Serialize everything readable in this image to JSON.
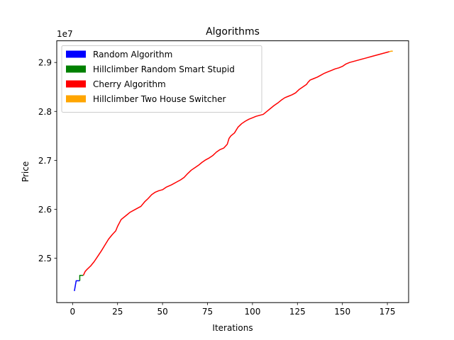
{
  "chart_data": {
    "type": "line",
    "title": "Algorithms",
    "xlabel": "Iterations",
    "ylabel": "Price",
    "y_offset_text": "1e7",
    "xlim": [
      -8.8,
      186.8
    ],
    "ylim": [
      24093000.0,
      29443000.0
    ],
    "xticks": [
      0,
      25,
      50,
      75,
      100,
      125,
      150,
      175
    ],
    "xtick_labels": [
      "0",
      "25",
      "50",
      "75",
      "100",
      "125",
      "150",
      "175"
    ],
    "yticks": [
      25000000.0,
      26000000.0,
      27000000.0,
      28000000.0,
      29000000.0
    ],
    "ytick_labels": [
      "2.5",
      "2.6",
      "2.7",
      "2.8",
      "2.9"
    ],
    "grid": false,
    "legend_position": "top-left",
    "series": [
      {
        "name": "Random Algorithm",
        "color": "#0000ff",
        "x": [
          1,
          2,
          3,
          4
        ],
        "y": [
          24330000,
          24540000,
          24540000,
          24540000
        ]
      },
      {
        "name": "Hillclimber Random Smart Stupid",
        "color": "#008000",
        "x": [
          4,
          4,
          5,
          6
        ],
        "y": [
          24540000,
          24650000,
          24650000,
          24650000
        ]
      },
      {
        "name": "Cherry Algorithm",
        "color": "#ff0000",
        "x": [
          6,
          7,
          8,
          10,
          12,
          14,
          16,
          18,
          20,
          22,
          24,
          25,
          27,
          30,
          32,
          35,
          38,
          40,
          42,
          44,
          46,
          48,
          50,
          52,
          55,
          58,
          60,
          62,
          64,
          66,
          68,
          70,
          72,
          74,
          76,
          78,
          80,
          82,
          84,
          86,
          87,
          88,
          90,
          91,
          92,
          94,
          96,
          98,
          100,
          102,
          104,
          106,
          108,
          110,
          112,
          114,
          116,
          118,
          120,
          122,
          124,
          126,
          128,
          130,
          131,
          132,
          134,
          136,
          138,
          140,
          142,
          144,
          146,
          148,
          150,
          152,
          154,
          156,
          158,
          160,
          162,
          164,
          166,
          168,
          170,
          172,
          174,
          176
        ],
        "y": [
          24650000,
          24730000,
          24770000,
          24840000,
          24930000,
          25040000,
          25150000,
          25270000,
          25390000,
          25480000,
          25560000,
          25650000,
          25790000,
          25880000,
          25940000,
          26000000,
          26060000,
          26150000,
          26220000,
          26300000,
          26350000,
          26380000,
          26400000,
          26450000,
          26500000,
          26560000,
          26600000,
          26650000,
          26730000,
          26800000,
          26850000,
          26900000,
          26960000,
          27010000,
          27050000,
          27100000,
          27170000,
          27220000,
          27250000,
          27330000,
          27450000,
          27500000,
          27560000,
          27620000,
          27680000,
          27750000,
          27800000,
          27840000,
          27870000,
          27900000,
          27920000,
          27940000,
          28000000,
          28060000,
          28120000,
          28170000,
          28230000,
          28280000,
          28310000,
          28340000,
          28380000,
          28450000,
          28500000,
          28550000,
          28600000,
          28640000,
          28670000,
          28700000,
          28740000,
          28780000,
          28810000,
          28840000,
          28870000,
          28890000,
          28920000,
          28970000,
          29000000,
          29020000,
          29040000,
          29060000,
          29080000,
          29100000,
          29120000,
          29140000,
          29160000,
          29180000,
          29200000,
          29220000
        ]
      },
      {
        "name": "Hillclimber Two House Switcher",
        "color": "#ffa500",
        "x": [
          176,
          177,
          178
        ],
        "y": [
          29220000,
          29230000,
          29230000
        ]
      }
    ]
  }
}
